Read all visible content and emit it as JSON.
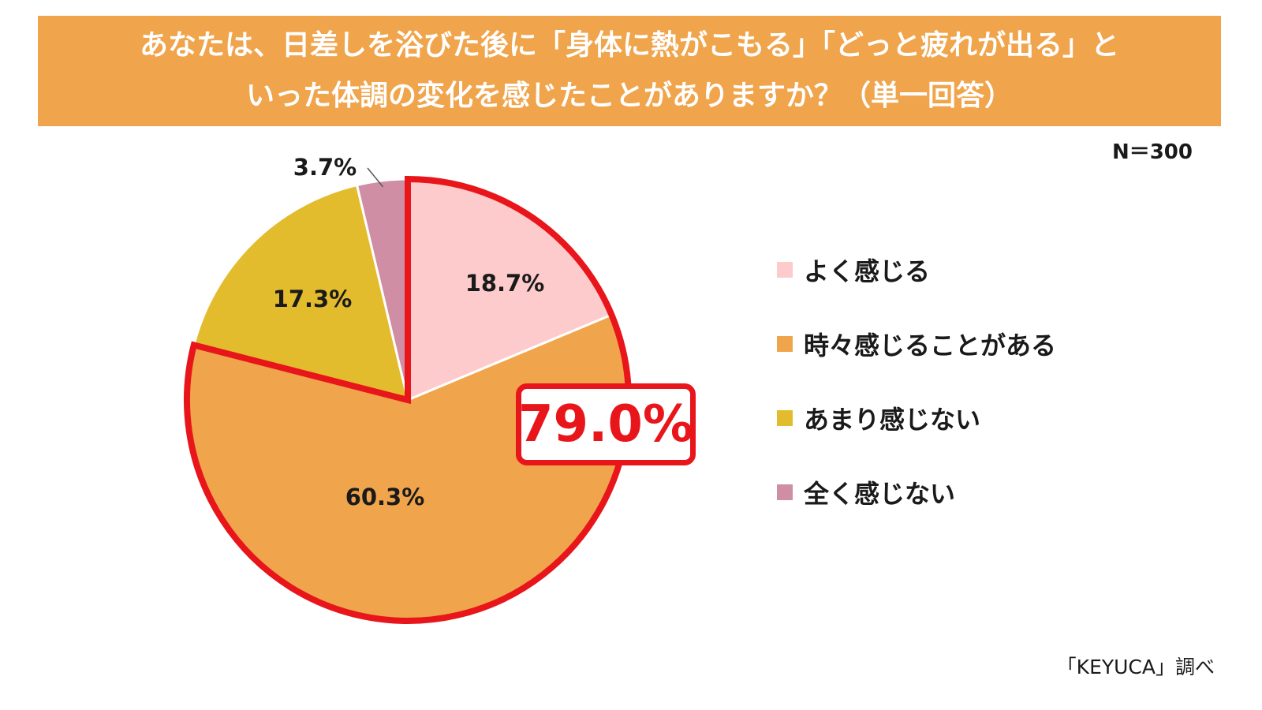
{
  "title": {
    "line1": "あなたは、日差しを浴びた後に「身体に熱がこもる」「どっと疲れが出る」と",
    "line2": "いった体調の変化を感じたことがありますか？（単一回答）"
  },
  "n_label": "N＝300",
  "source": "「KEYUCA」調べ",
  "callout": "79.0%",
  "chart_data": {
    "type": "pie",
    "unit": "%",
    "start_angle": "12 o'clock, clockwise",
    "slices": [
      {
        "label": "よく感じる",
        "value": 18.7,
        "display": "18.7%",
        "color": "#FDCBCB"
      },
      {
        "label": "時々感じることがある",
        "value": 60.3,
        "display": "60.3%",
        "color": "#F0A44B"
      },
      {
        "label": "あまり感じない",
        "value": 17.3,
        "display": "17.3%",
        "color": "#E3BC2E"
      },
      {
        "label": "全く感じない",
        "value": 3.7,
        "display": "3.7%",
        "color": "#CF8EA3"
      }
    ],
    "highlight": {
      "slices": [
        0,
        1
      ],
      "total": "79.0%",
      "color": "#E8161B"
    },
    "legend_placement": "right"
  }
}
